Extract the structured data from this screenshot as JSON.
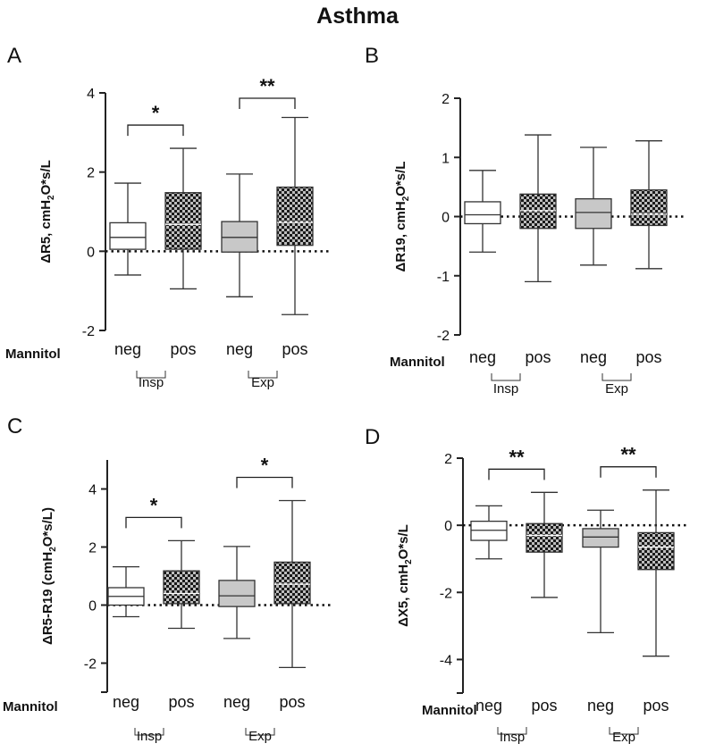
{
  "figure_title": "Asthma",
  "chart_data": [
    {
      "type": "box",
      "panel_letter": "A",
      "ylabel": "ΔR5, cmH2O*s/L",
      "ylabel_base": "ΔR5, cmH",
      "ylabel_sub": "2",
      "ylabel_tail": "O*s/L",
      "ylim": [
        -2,
        4
      ],
      "yticks": [
        -2,
        0,
        2,
        4
      ],
      "row_label": "Mannitol",
      "groups": [
        "Insp",
        "Exp"
      ],
      "categories": [
        "neg",
        "pos",
        "neg",
        "pos"
      ],
      "boxes": [
        {
          "min": -0.6,
          "q1": 0.05,
          "median": 0.35,
          "q3": 0.72,
          "max": 1.72
        },
        {
          "min": -0.95,
          "q1": 0.05,
          "median": 0.68,
          "q3": 1.48,
          "max": 2.6
        },
        {
          "min": -1.15,
          "q1": -0.02,
          "median": 0.35,
          "q3": 0.75,
          "max": 1.95
        },
        {
          "min": -1.6,
          "q1": 0.15,
          "median": 0.73,
          "q3": 1.62,
          "max": 3.38
        }
      ],
      "significance": [
        {
          "from": 0,
          "to": 1,
          "label": "*"
        },
        {
          "from": 2,
          "to": 3,
          "label": "**"
        }
      ]
    },
    {
      "type": "box",
      "panel_letter": "B",
      "ylabel": "ΔR19, cmH2O*s/L",
      "ylabel_base": "ΔR19, cmH",
      "ylabel_sub": "2",
      "ylabel_tail": "O*s/L",
      "ylim": [
        -2,
        2
      ],
      "yticks": [
        -2,
        -1,
        0,
        1,
        2
      ],
      "row_label": "Mannitol",
      "groups": [
        "Insp",
        "Exp"
      ],
      "categories": [
        "neg",
        "pos",
        "neg",
        "pos"
      ],
      "boxes": [
        {
          "min": -0.6,
          "q1": -0.12,
          "median": 0.03,
          "q3": 0.25,
          "max": 0.78
        },
        {
          "min": -1.1,
          "q1": -0.2,
          "median": 0.1,
          "q3": 0.38,
          "max": 1.38
        },
        {
          "min": -0.82,
          "q1": -0.2,
          "median": 0.07,
          "q3": 0.3,
          "max": 1.17
        },
        {
          "min": -0.88,
          "q1": -0.15,
          "median": 0.04,
          "q3": 0.45,
          "max": 1.28
        }
      ],
      "significance": []
    },
    {
      "type": "box",
      "panel_letter": "C",
      "ylabel": "ΔR5-R19 (cmH2O*s/L)",
      "ylabel_base": "ΔR5-R19 (cmH",
      "ylabel_sub": "2",
      "ylabel_tail": "O*s/L)",
      "ylim": [
        -3,
        5
      ],
      "yticks": [
        -2,
        0,
        2,
        4
      ],
      "row_label": "Mannitol",
      "groups": [
        "Insp",
        "Exp"
      ],
      "categories": [
        "neg",
        "pos",
        "neg",
        "pos"
      ],
      "boxes": [
        {
          "min": -0.4,
          "q1": 0.0,
          "median": 0.3,
          "q3": 0.6,
          "max": 1.32
        },
        {
          "min": -0.8,
          "q1": 0.05,
          "median": 0.4,
          "q3": 1.18,
          "max": 2.22
        },
        {
          "min": -1.15,
          "q1": -0.05,
          "median": 0.32,
          "q3": 0.85,
          "max": 2.02
        },
        {
          "min": -2.15,
          "q1": 0.05,
          "median": 0.72,
          "q3": 1.48,
          "max": 3.6
        }
      ],
      "significance": [
        {
          "from": 0,
          "to": 1,
          "label": "*"
        },
        {
          "from": 2,
          "to": 3,
          "label": "*"
        }
      ]
    },
    {
      "type": "box",
      "panel_letter": "D",
      "ylabel": "ΔX5, cmH2O*s/L",
      "ylabel_base": "ΔX5, cmH",
      "ylabel_sub": "2",
      "ylabel_tail": "O*s/L",
      "ylim": [
        -5,
        2
      ],
      "yticks": [
        -4,
        -2,
        0,
        2
      ],
      "row_label": "Mannitol",
      "groups": [
        "Insp",
        "Exp"
      ],
      "categories": [
        "neg",
        "pos",
        "neg",
        "pos"
      ],
      "boxes": [
        {
          "min": -1.0,
          "q1": -0.45,
          "median": -0.15,
          "q3": 0.12,
          "max": 0.58
        },
        {
          "min": -2.15,
          "q1": -0.8,
          "median": -0.3,
          "q3": 0.05,
          "max": 0.98
        },
        {
          "min": -3.2,
          "q1": -0.65,
          "median": -0.35,
          "q3": -0.1,
          "max": 0.45
        },
        {
          "min": -3.9,
          "q1": -1.32,
          "median": -0.65,
          "q3": -0.22,
          "max": 1.05
        }
      ],
      "significance": [
        {
          "from": 0,
          "to": 1,
          "label": "**"
        },
        {
          "from": 2,
          "to": 3,
          "label": "**"
        }
      ]
    }
  ]
}
